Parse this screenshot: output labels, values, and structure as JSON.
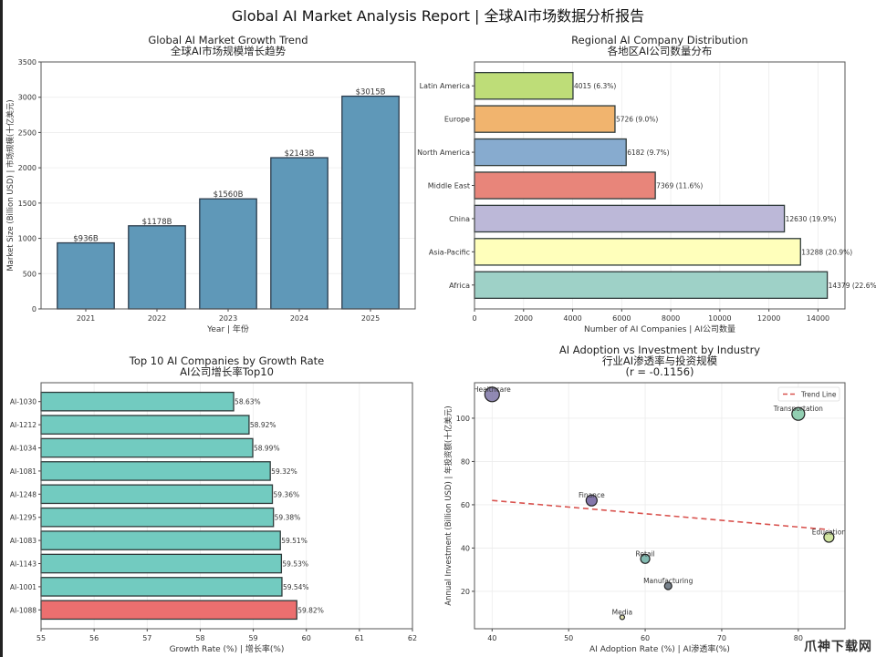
{
  "suptitle": "Global AI Market Analysis Report | 全球AI市场数据分析报告",
  "watermark": "爪神下载网",
  "chart_data": [
    {
      "id": "market",
      "type": "bar",
      "title": "Global AI Market Growth Trend",
      "subtitle": "全球AI市场规模增长趋势",
      "xlabel": "Year | 年份",
      "ylabel": "Market Size (Billion USD) | 市场规模(十亿美元)",
      "categories": [
        "2021",
        "2022",
        "2023",
        "2024",
        "2025"
      ],
      "values": [
        936,
        1178,
        1560,
        2143,
        3015
      ],
      "data_labels": [
        "$936B",
        "$1178B",
        "$1560B",
        "$2143B",
        "$3015B"
      ],
      "ylim": [
        0,
        3500
      ],
      "yticks": [
        0,
        500,
        1000,
        1500,
        2000,
        2500,
        3000,
        3500
      ],
      "color": "#5f98b8",
      "grid": true
    },
    {
      "id": "regional",
      "type": "bar",
      "orientation": "horizontal",
      "title": "Regional AI Company Distribution",
      "subtitle": "各地区AI公司数量分布",
      "xlabel": "Number of AI Companies | AI公司数量",
      "ylabel": "",
      "categories": [
        "Latin America",
        "Europe",
        "North America",
        "Middle East",
        "China",
        "Asia-Pacific",
        "Africa"
      ],
      "values": [
        4015,
        5726,
        6182,
        7369,
        12630,
        13288,
        14379
      ],
      "data_labels": [
        "4015 (6.3%)",
        "5726 (9.0%)",
        "6182 (9.7%)",
        "7369 (11.6%)",
        "12630 (19.9%)",
        "13288 (20.9%)",
        "14379 (22.6%)"
      ],
      "colors": [
        "#bedd78",
        "#f1b46e",
        "#87abcf",
        "#e8857a",
        "#bcb8d8",
        "#ffffbb",
        "#9ed1c7"
      ],
      "xlim": [
        0,
        15100
      ],
      "xticks": [
        0,
        2000,
        4000,
        6000,
        8000,
        10000,
        12000,
        14000
      ],
      "grid": true
    },
    {
      "id": "top10",
      "type": "bar",
      "orientation": "horizontal",
      "title": "Top 10 AI Companies by Growth Rate",
      "subtitle": "AI公司增长率Top10",
      "xlabel": "Growth Rate (%) | 增长率(%)",
      "ylabel": "",
      "categories": [
        "AI-1030",
        "AI-1212",
        "AI-1034",
        "AI-1081",
        "AI-1248",
        "AI-1295",
        "AI-1083",
        "AI-1143",
        "AI-1001",
        "AI-1088"
      ],
      "values": [
        58.63,
        58.92,
        58.99,
        59.32,
        59.36,
        59.38,
        59.51,
        59.53,
        59.54,
        59.82
      ],
      "data_labels": [
        "58.63%",
        "58.92%",
        "58.99%",
        "59.32%",
        "59.36%",
        "59.38%",
        "59.51%",
        "59.53%",
        "59.54%",
        "59.82%"
      ],
      "color": "#72cbc0",
      "highlight_color": "#ec6f6f",
      "highlight_index": 9,
      "xlim": [
        55,
        62
      ],
      "xticks": [
        55,
        56,
        57,
        58,
        59,
        60,
        61,
        62
      ],
      "grid": true
    },
    {
      "id": "adoption",
      "type": "scatter",
      "title": "AI Adoption vs Investment by Industry",
      "subtitle": "行业AI渗透率与投资规模",
      "annotation": "(r = -0.1156)",
      "xlabel": "AI Adoption Rate (%) | AI渗透率(%)",
      "ylabel": "Annual Investment (Billion USD) | 年投资额(十亿美元)",
      "points": [
        {
          "label": "Healthcare",
          "x": 40,
          "y": 111,
          "size": 8,
          "color": "#7c74a6"
        },
        {
          "label": "Transportation",
          "x": 80,
          "y": 102,
          "size": 7,
          "color": "#7fc7a4"
        },
        {
          "label": "Finance",
          "x": 53,
          "y": 62,
          "size": 6,
          "color": "#6f5f9c"
        },
        {
          "label": "Education",
          "x": 84,
          "y": 45,
          "size": 5.5,
          "color": "#c8df8e"
        },
        {
          "label": "Retail",
          "x": 60,
          "y": 35,
          "size": 5,
          "color": "#6dafa4"
        },
        {
          "label": "Manufacturing",
          "x": 63,
          "y": 22.5,
          "size": 4,
          "color": "#606c78"
        },
        {
          "label": "Media",
          "x": 57,
          "y": 8,
          "size": 2.5,
          "color": "#d8d8a0"
        }
      ],
      "trend_line": {
        "label": "Trend Line",
        "x": [
          40,
          84
        ],
        "y": [
          62,
          48.5
        ],
        "color": "#d9534f"
      },
      "xlim": [
        37.7,
        86.1
      ],
      "ylim": [
        2.7,
        116.4
      ],
      "xticks": [
        40,
        50,
        60,
        70,
        80
      ],
      "yticks": [
        20,
        40,
        60,
        80,
        100
      ],
      "legend": "top-right",
      "grid": true
    }
  ]
}
